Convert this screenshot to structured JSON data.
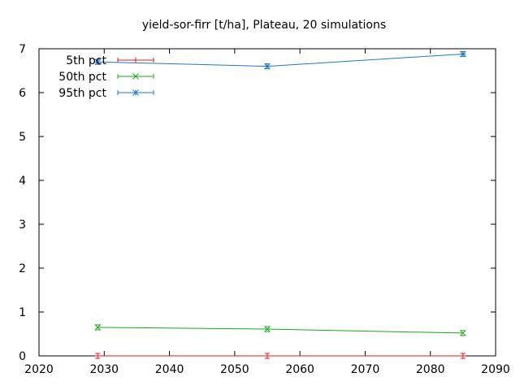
{
  "chart_data": {
    "type": "line",
    "title": "yield-sor-firr [t/ha], Plateau, 20 simulations",
    "xlabel": "",
    "ylabel": "",
    "xlim": [
      2020,
      2090
    ],
    "ylim": [
      0,
      7
    ],
    "xticks": [
      2020,
      2030,
      2040,
      2050,
      2060,
      2070,
      2080,
      2090
    ],
    "yticks": [
      0,
      1,
      2,
      3,
      4,
      5,
      6,
      7
    ],
    "x": [
      2029,
      2055,
      2085
    ],
    "series": [
      {
        "name": "5th pct",
        "values": [
          0.0,
          0.0,
          0.0
        ],
        "color": "#e41a1c",
        "marker": "plus"
      },
      {
        "name": "50th pct",
        "values": [
          0.65,
          0.61,
          0.52
        ],
        "color": "#1aa81a",
        "marker": "cross"
      },
      {
        "name": "95th pct",
        "values": [
          6.7,
          6.6,
          6.88
        ],
        "color": "#1f78c8",
        "marker": "star"
      }
    ],
    "legend_position": "top-left",
    "grid": false
  }
}
